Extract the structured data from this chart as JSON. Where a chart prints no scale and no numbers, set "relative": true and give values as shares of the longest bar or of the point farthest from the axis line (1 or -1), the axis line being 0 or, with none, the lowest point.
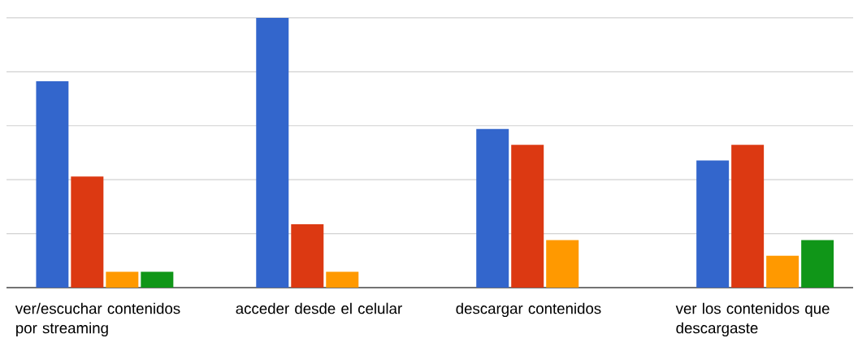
{
  "chart_data": {
    "type": "bar",
    "relative": true,
    "grid": "y",
    "categories": [
      "ver/escuchar contenidos por streaming",
      "acceder desde el celular",
      "descargar contenidos",
      "ver los contenidos que descargaste"
    ],
    "series": [
      {
        "color": "#3366cc",
        "values": [
          0.765,
          1,
          0.588,
          0.471
        ]
      },
      {
        "color": "#dc3912",
        "values": [
          0.412,
          0.235,
          0.529,
          0.529
        ]
      },
      {
        "color": "#ff9900",
        "values": [
          0.059,
          0.059,
          0.176,
          0.118
        ]
      },
      {
        "color": "#109618",
        "values": [
          0.059,
          null,
          null,
          0.176
        ]
      }
    ]
  }
}
